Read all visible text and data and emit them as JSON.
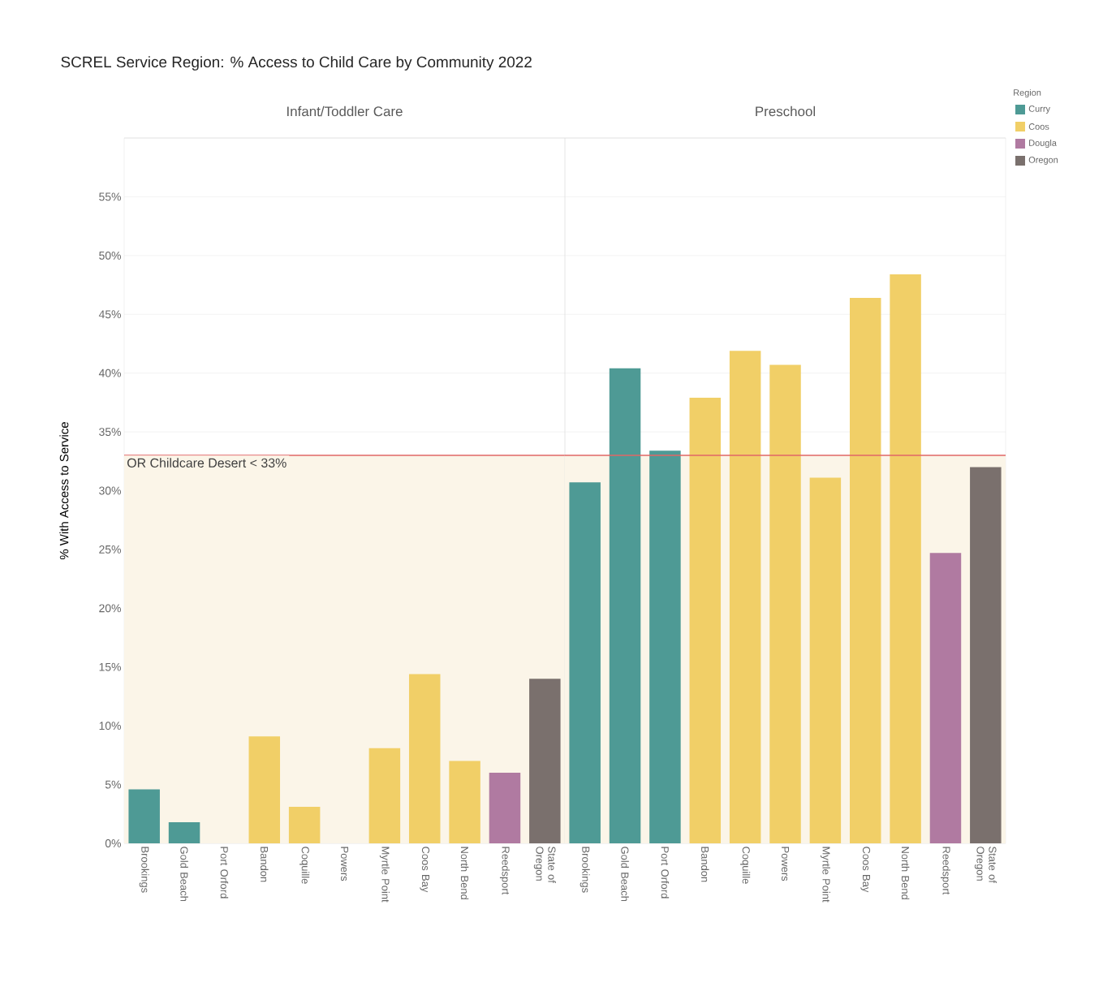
{
  "chart_data": [
    {
      "type": "bar",
      "title": "SCREL Service Region: % Access to Child Care by Community 2022",
      "subtitle": "Infant/Toddler Care",
      "ylabel": "% With Access to Service",
      "categories": [
        "Brookings",
        "Gold Beach",
        "Port Orford",
        "Bandon",
        "Coquille",
        "Powers",
        "Myrtle Point",
        "Coos Bay",
        "North Bend",
        "Reedsport",
        "State of Oregon"
      ],
      "series": [
        {
          "color": "#4e9a95",
          "values": [
            4.6,
            1.8,
            0,
            null,
            null,
            null,
            null,
            null,
            null,
            null,
            null
          ]
        },
        {
          "color": "#f1cf67",
          "values": [
            null,
            null,
            null,
            9.1,
            3.1,
            0,
            8.1,
            14.4,
            7.0,
            null,
            null
          ]
        },
        {
          "color": "#b07aa1",
          "values": [
            null,
            null,
            null,
            null,
            null,
            null,
            null,
            null,
            null,
            6.0,
            null
          ]
        },
        {
          "color": "#7a706d",
          "values": [
            null,
            null,
            null,
            null,
            null,
            null,
            null,
            null,
            null,
            null,
            14.0
          ]
        }
      ],
      "stacked": true,
      "ylim": [
        0,
        60
      ],
      "yticks": [
        {
          "value": 0,
          "label": "0%"
        },
        {
          "value": 5,
          "label": "5%"
        },
        {
          "value": 10,
          "label": "10%"
        },
        {
          "value": 15,
          "label": "15%"
        },
        {
          "value": 20,
          "label": "20%"
        },
        {
          "value": 25,
          "label": "25%"
        },
        {
          "value": 30,
          "label": "30%"
        },
        {
          "value": 35,
          "label": "35%"
        },
        {
          "value": 40,
          "label": "40%"
        },
        {
          "value": 45,
          "label": "45%"
        },
        {
          "value": 50,
          "label": "50%"
        },
        {
          "value": 55,
          "label": "55%"
        }
      ],
      "grid": "y",
      "ref_lines": [
        {
          "axis": "y",
          "value": 33,
          "label": "OR Childcare Desert < 33%",
          "color": "#e06666"
        }
      ],
      "bands": [
        {
          "axis": "y",
          "from": 0,
          "to": 33,
          "color": "#fbf5e8"
        }
      ]
    },
    {
      "type": "bar",
      "title": "Preschool",
      "legend_title": "Region",
      "legend": "top right",
      "categories": [
        "Brookings",
        "Gold Beach",
        "Port Orford",
        "Bandon",
        "Coquille",
        "Powers",
        "Myrtle Point",
        "Coos Bay",
        "North Bend",
        "Reedsport",
        "State of Oregon"
      ],
      "series": [
        {
          "name": "Curry",
          "color": "#4e9a95",
          "values": [
            30.7,
            40.4,
            33.4,
            null,
            null,
            null,
            null,
            null,
            null,
            null,
            null
          ]
        },
        {
          "name": "Coos",
          "color": "#f1cf67",
          "values": [
            null,
            null,
            null,
            37.9,
            41.9,
            40.7,
            31.1,
            46.4,
            48.4,
            null,
            null
          ]
        },
        {
          "name": "Dougla",
          "color": "#b07aa1",
          "values": [
            null,
            null,
            null,
            null,
            null,
            null,
            null,
            null,
            null,
            24.7,
            null
          ]
        },
        {
          "name": "Oregon",
          "color": "#7a706d",
          "values": [
            null,
            null,
            null,
            null,
            null,
            null,
            null,
            null,
            null,
            null,
            32.0
          ]
        }
      ],
      "stacked": true,
      "ylim": [
        0,
        60
      ],
      "yticks": [
        {
          "value": 0,
          "label": null
        },
        {
          "value": 5,
          "label": null
        },
        {
          "value": 10,
          "label": null
        },
        {
          "value": 15,
          "label": null
        },
        {
          "value": 20,
          "label": null
        },
        {
          "value": 25,
          "label": null
        },
        {
          "value": 30,
          "label": null
        },
        {
          "value": 35,
          "label": null
        },
        {
          "value": 40,
          "label": null
        },
        {
          "value": 45,
          "label": null
        },
        {
          "value": 50,
          "label": null
        },
        {
          "value": 55,
          "label": null
        }
      ],
      "tick_labels": "x",
      "grid": "y",
      "ref_lines": [
        {
          "axis": "y",
          "value": 33,
          "color": "#e06666"
        }
      ],
      "bands": [
        {
          "axis": "y",
          "from": 0,
          "to": 33,
          "color": "#fbf5e8"
        }
      ]
    }
  ]
}
